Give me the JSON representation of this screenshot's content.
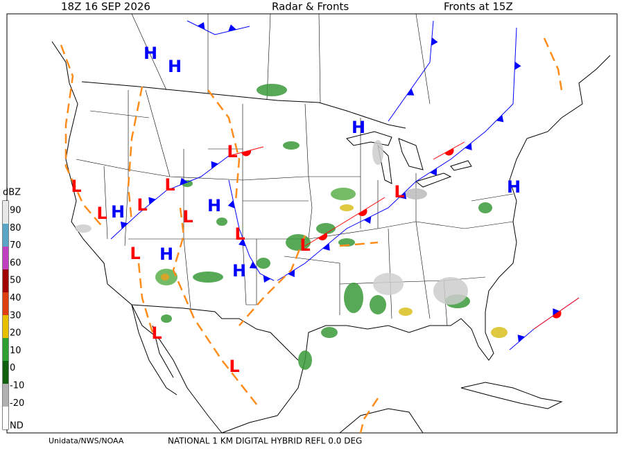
{
  "header": {
    "valid_time": "18Z  16 SEP  2026",
    "title": "Radar & Fronts",
    "fronts_time": "Fronts at 15Z"
  },
  "footer": {
    "credit": "Unidata/NWS/NOAA",
    "product": "NATIONAL 1 KM DIGITAL HYBRID REFL 0.0 DEG"
  },
  "legend": {
    "title": "dBZ",
    "ticks": [
      "90",
      "80",
      "70",
      "60",
      "50",
      "40",
      "30",
      "20",
      "10",
      "0",
      "-10",
      "-20",
      "ND"
    ],
    "colors": [
      "#e8e8e8",
      "#5aa6c8",
      "#c040c0",
      "#a00000",
      "#e04010",
      "#e8c000",
      "#30a030",
      "#106010",
      "#b0b0b0",
      "#ffffff"
    ]
  },
  "pressure_centers": [
    "H",
    "H",
    "H",
    "H",
    "H",
    "H",
    "H",
    "H",
    "L",
    "L",
    "L",
    "L",
    "L",
    "L",
    "L",
    "L",
    "L",
    "L",
    "L",
    "L"
  ]
}
